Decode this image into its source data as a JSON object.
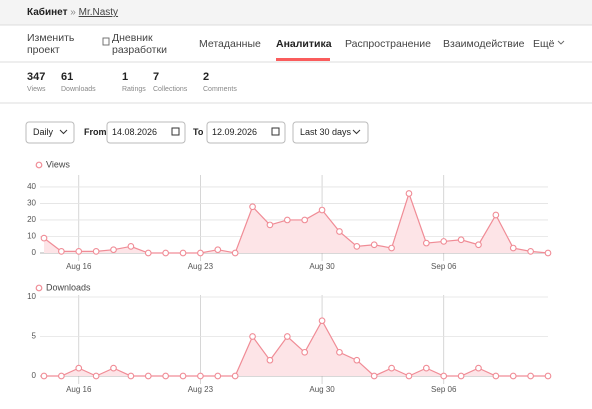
{
  "breadcrumb": {
    "home": "Кабинет",
    "separator": "»",
    "project": "Mr.Nasty"
  },
  "tabs": [
    [
      "Изменить",
      "проект"
    ],
    [
      "Дневник",
      "разработки"
    ],
    "Метаданные",
    "Аналитика",
    "Распространение",
    "Взаимодействие",
    "Ещё"
  ],
  "stats": [
    {
      "value": 347,
      "label": "Views"
    },
    {
      "value": 61,
      "label": "Downloads"
    },
    {
      "value": 1,
      "label": "Ratings"
    },
    {
      "value": 7,
      "label": "Collections"
    },
    {
      "value": 2,
      "label": "Comments"
    }
  ],
  "controls": {
    "interval": "Daily",
    "from_label": "From",
    "from": "14.08.2026",
    "to_label": "To",
    "to": "12.09.2026",
    "range": "Last 30 days"
  },
  "chart_data": [
    {
      "type": "line",
      "title": "Views",
      "categories": [
        null,
        null,
        "Aug 16",
        null,
        null,
        null,
        null,
        null,
        null,
        "Aug 23",
        null,
        null,
        null,
        null,
        null,
        null,
        "Aug 30",
        null,
        null,
        null,
        null,
        null,
        null,
        "Sep 06",
        null,
        null,
        null,
        null,
        null,
        null
      ],
      "values": [
        9,
        1,
        1,
        1,
        2,
        4,
        0,
        0,
        0,
        0,
        2,
        0,
        28,
        17,
        20,
        20,
        26,
        13,
        4,
        5,
        3,
        36,
        6,
        7,
        8,
        5,
        23,
        3,
        1,
        0
      ],
      "color": "#f08c96",
      "ylim": [
        0,
        46
      ],
      "yticks": [
        0,
        10,
        20,
        30,
        40
      ],
      "grid": true
    },
    {
      "type": "line",
      "title": "Downloads",
      "categories": [
        null,
        null,
        "Aug 16",
        null,
        null,
        null,
        null,
        null,
        null,
        "Aug 23",
        null,
        null,
        null,
        null,
        null,
        null,
        "Aug 30",
        null,
        null,
        null,
        null,
        null,
        null,
        "Sep 06",
        null,
        null,
        null,
        null,
        null,
        null
      ],
      "values": [
        0,
        0,
        1,
        0,
        1,
        0,
        0,
        0,
        0,
        0,
        0,
        0,
        5,
        2,
        5,
        3,
        7,
        3,
        2,
        0,
        1,
        0,
        1,
        0,
        0,
        1,
        0,
        0,
        0,
        0
      ],
      "color": "#f08c96",
      "ylim": [
        0,
        10
      ],
      "yticks": [
        0,
        5,
        10
      ],
      "grid": true
    }
  ]
}
